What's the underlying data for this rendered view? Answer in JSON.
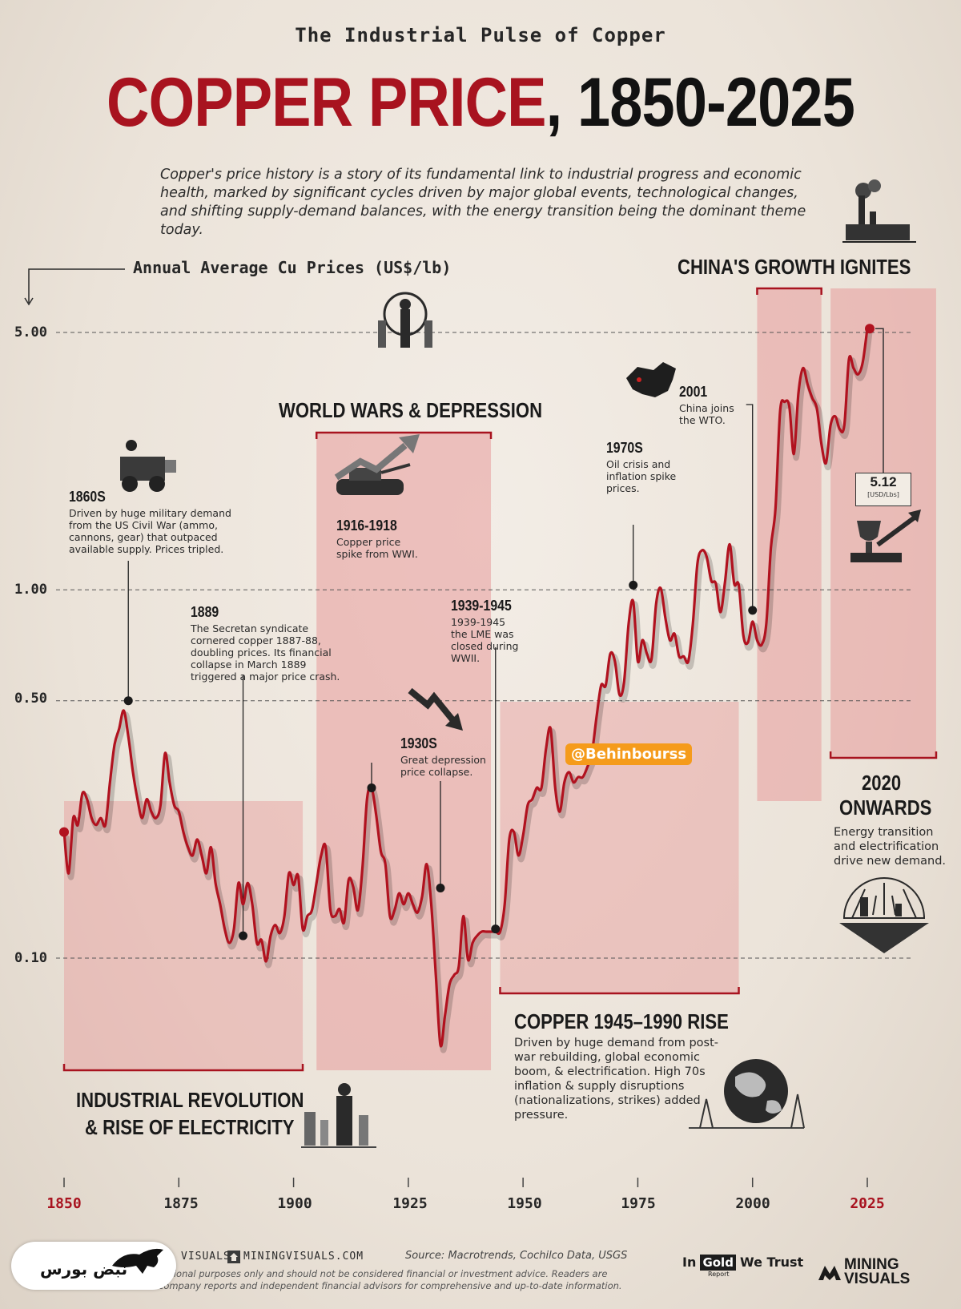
{
  "header": {
    "kicker": "The Industrial Pulse of Copper",
    "title_red": "COPPER PRICE",
    "title_black": ", 1850-2025",
    "intro": "Copper's price history is a story of its fundamental link to industrial progress and economic health, marked by significant cycles driven by major global events, technological changes, and shifting supply-demand balances, with the energy transition being the dominant theme today."
  },
  "chart_data": {
    "type": "line",
    "ylabel": "Annual Average Cu Prices (US$/lb)",
    "yscale": "log",
    "ylim": [
      0.052,
      7.0
    ],
    "xlim": [
      1850,
      2025
    ],
    "y_ticks": [
      "5.00",
      "1.00",
      "0.50",
      "0.10"
    ],
    "y_tick_values": [
      5.0,
      1.0,
      0.5,
      0.1
    ],
    "x_ticks": [
      "1850",
      "1875",
      "1900",
      "1925",
      "1950",
      "1975",
      "2000",
      "2025"
    ],
    "series": [
      {
        "x": [
          1850,
          1851,
          1852,
          1853,
          1854,
          1855,
          1856,
          1857,
          1858,
          1859,
          1860,
          1861,
          1862,
          1863,
          1864,
          1865,
          1866,
          1867,
          1868,
          1869,
          1870,
          1871,
          1872,
          1873,
          1874,
          1875,
          1876,
          1877,
          1878,
          1879,
          1880,
          1881,
          1882,
          1883,
          1884,
          1885,
          1886,
          1887,
          1888,
          1889,
          1890,
          1891,
          1892,
          1893,
          1894,
          1895,
          1896,
          1897,
          1898,
          1899,
          1900,
          1901,
          1902,
          1903,
          1904,
          1905,
          1906,
          1907,
          1908,
          1909,
          1910,
          1911,
          1912,
          1913,
          1914,
          1915,
          1916,
          1917,
          1918,
          1919,
          1920,
          1921,
          1922,
          1923,
          1924,
          1925,
          1926,
          1927,
          1928,
          1929,
          1930,
          1931,
          1932,
          1933,
          1934,
          1935,
          1936,
          1937,
          1938,
          1939,
          1940,
          1941,
          1942,
          1943,
          1944,
          1945,
          1946,
          1947,
          1948,
          1949,
          1950,
          1951,
          1952,
          1953,
          1954,
          1955,
          1956,
          1957,
          1958,
          1959,
          1960,
          1961,
          1962,
          1963,
          1964,
          1965,
          1966,
          1967,
          1968,
          1969,
          1970,
          1971,
          1972,
          1973,
          1974,
          1975,
          1976,
          1977,
          1978,
          1979,
          1980,
          1981,
          1982,
          1983,
          1984,
          1985,
          1986,
          1987,
          1988,
          1989,
          1990,
          1991,
          1992,
          1993,
          1994,
          1995,
          1996,
          1997,
          1998,
          1999,
          2000,
          2001,
          2002,
          2003,
          2004,
          2005,
          2006,
          2007,
          2008,
          2009,
          2010,
          2011,
          2012,
          2013,
          2014,
          2015,
          2016,
          2017,
          2018,
          2019,
          2020,
          2021,
          2022,
          2023,
          2024,
          2025
        ],
        "values": [
          0.22,
          0.17,
          0.24,
          0.23,
          0.28,
          0.27,
          0.24,
          0.23,
          0.24,
          0.23,
          0.3,
          0.38,
          0.42,
          0.47,
          0.4,
          0.32,
          0.27,
          0.24,
          0.27,
          0.25,
          0.24,
          0.26,
          0.36,
          0.3,
          0.26,
          0.25,
          0.22,
          0.2,
          0.19,
          0.21,
          0.19,
          0.17,
          0.2,
          0.16,
          0.14,
          0.12,
          0.11,
          0.12,
          0.16,
          0.14,
          0.16,
          0.14,
          0.11,
          0.112,
          0.098,
          0.115,
          0.123,
          0.117,
          0.13,
          0.17,
          0.158,
          0.167,
          0.12,
          0.13,
          0.135,
          0.16,
          0.19,
          0.2,
          0.136,
          0.13,
          0.136,
          0.125,
          0.163,
          0.156,
          0.135,
          0.175,
          0.27,
          0.29,
          0.245,
          0.195,
          0.18,
          0.13,
          0.135,
          0.15,
          0.14,
          0.15,
          0.14,
          0.133,
          0.147,
          0.18,
          0.14,
          0.09,
          0.058,
          0.07,
          0.085,
          0.09,
          0.095,
          0.13,
          0.099,
          0.11,
          0.115,
          0.118,
          0.118,
          0.118,
          0.118,
          0.118,
          0.14,
          0.21,
          0.22,
          0.19,
          0.215,
          0.26,
          0.27,
          0.29,
          0.29,
          0.37,
          0.42,
          0.29,
          0.25,
          0.3,
          0.32,
          0.3,
          0.31,
          0.31,
          0.33,
          0.36,
          0.45,
          0.55,
          0.55,
          0.67,
          0.64,
          0.52,
          0.56,
          0.81,
          0.93,
          0.64,
          0.73,
          0.67,
          0.65,
          0.92,
          1.01,
          0.84,
          0.73,
          0.76,
          0.66,
          0.66,
          0.64,
          0.81,
          1.18,
          1.28,
          1.23,
          1.06,
          1.04,
          0.87,
          1.05,
          1.33,
          1.04,
          1.03,
          0.75,
          0.72,
          0.82,
          0.73,
          0.71,
          0.81,
          1.3,
          1.67,
          3.05,
          3.24,
          3.15,
          2.34,
          3.42,
          4.0,
          3.61,
          3.32,
          3.11,
          2.49,
          2.21,
          2.8,
          2.96,
          2.73,
          2.8,
          4.23,
          4.0,
          3.85,
          4.15,
          5.12
        ]
      }
    ],
    "highlight": {
      "year": 2025,
      "value": 5.12,
      "label": "5.12",
      "unit": "[USD/Lbs]"
    },
    "annotations": [
      {
        "year": 1864,
        "value": 0.5,
        "title": "1860S",
        "text": "Driven by huge military demand from the US Civil War (ammo, cannons, gear) that outpaced available supply. Prices tripled."
      },
      {
        "year": 1889,
        "value": 0.115,
        "title": "1889",
        "text": "The Secretan syndicate cornered copper 1887-88, doubling prices. Its financial collapse in March 1889 triggered a major price crash."
      },
      {
        "year": 1917,
        "value": 0.29,
        "title": "1916-1918",
        "text": "Copper price spike from WWI."
      },
      {
        "year": 1932,
        "value": 0.155,
        "title": "1930S",
        "text": "Great depression price collapse."
      },
      {
        "year": 1944,
        "value": 0.12,
        "title": "1939-1945",
        "text": "1939-1945 the LME was closed during WWII."
      },
      {
        "year": 1974,
        "value": 1.03,
        "title": "1970S",
        "text": "Oil crisis and inflation spike prices."
      },
      {
        "year": 2000,
        "value": 0.88,
        "title": "2001",
        "text": "China joins the WTO."
      }
    ],
    "eras": [
      {
        "start": 1850,
        "end": 1902,
        "title": "INDUSTRIAL REVOLUTION\n& RISE OF ELECTRICITY",
        "text": ""
      },
      {
        "start": 1905,
        "end": 1943,
        "title": "WORLD WARS & DEPRESSION",
        "text": ""
      },
      {
        "start": 1945,
        "end": 1997,
        "title": "COPPER 1945–1990 RISE",
        "text": "Driven by huge demand from post-war rebuilding, global economic boom, & electrification. High 70s inflation & supply disruptions (nationalizations, strikes) added pressure."
      },
      {
        "start": 2001,
        "end": 2015,
        "title": "CHINA'S GROWTH IGNITES",
        "text": ""
      },
      {
        "start": 2017,
        "end": 2040,
        "title": "2020\nONWARDS",
        "text": "Energy transition and electrification drive new demand."
      }
    ]
  },
  "labels": {
    "era1_line1": "INDUSTRIAL REVOLUTION",
    "era1_line2": "& RISE OF ELECTRICITY",
    "era2": "WORLD WARS & DEPRESSION",
    "era3": "COPPER 1945–1990 RISE",
    "era3_body": "Driven by huge demand from post-war rebuilding, global economic boom, & electrification. High 70s inflation & supply disruptions (nationalizations, strikes) added pressure.",
    "era4": "CHINA'S GROWTH IGNITES",
    "era5_line1": "2020",
    "era5_line2": "ONWARDS",
    "era5_body": "Energy transition and electrification drive new demand.",
    "n1860_title": "1860S",
    "n1860_body": "Driven by huge military demand from the US Civil War (ammo, cannons, gear) that outpaced available supply. Prices tripled.",
    "n1889_title": "1889",
    "n1889_body": "The Secretan syndicate cornered copper 1887-88, doubling prices. Its financial collapse in March 1889 triggered a major price crash.",
    "n1916_title": "1916-1918",
    "n1916_body": "Copper price spike from WWI.",
    "n1930_title": "1930S",
    "n1930_body": "Great depression price collapse.",
    "n1939_title": "1939-1945",
    "n1939_body": "1939-1945 the LME was closed during WWII.",
    "n1970_title": "1970S",
    "n1970_body": "Oil crisis and inflation spike prices.",
    "n2001_title": "2001",
    "n2001_body": "China joins the WTO.",
    "callout_value": "5.12",
    "callout_unit": "[USD/Lbs]",
    "watermark": "@Behinbourss"
  },
  "footer": {
    "site_prefix": "VISUALS",
    "site": "MININGVISUALS.COM",
    "source": "Source: Macrotrends, Cochilco Data, USGS",
    "disclaimer_1": "national purposes only and should not be considered financial or investment advice. Readers are",
    "disclaimer_2": "company reports and independent financial advisors for comprehensive and up-to-date information.",
    "brand_gold_pre": "In",
    "brand_gold_box": "Gold",
    "brand_gold_post": "We Trust",
    "brand_gold_sub": "Report",
    "brand_mv_1": "MINING",
    "brand_mv_2": "VISUALS",
    "overlay_logo": "نبض بورس"
  },
  "colors": {
    "accent": "#a8131f",
    "line": "#b1121f",
    "era_fill": "#e79a9a",
    "watermark_bg": "#f59b1b"
  },
  "icons": [
    "soldiers-icon",
    "cannon-icon",
    "tank-icon",
    "arrow-down-icon",
    "china-map-icon",
    "factory-icon",
    "trophy-icon",
    "worker-icon",
    "globe-icon",
    "solar-sun-icon",
    "home-icon",
    "bull-logo-icon"
  ]
}
